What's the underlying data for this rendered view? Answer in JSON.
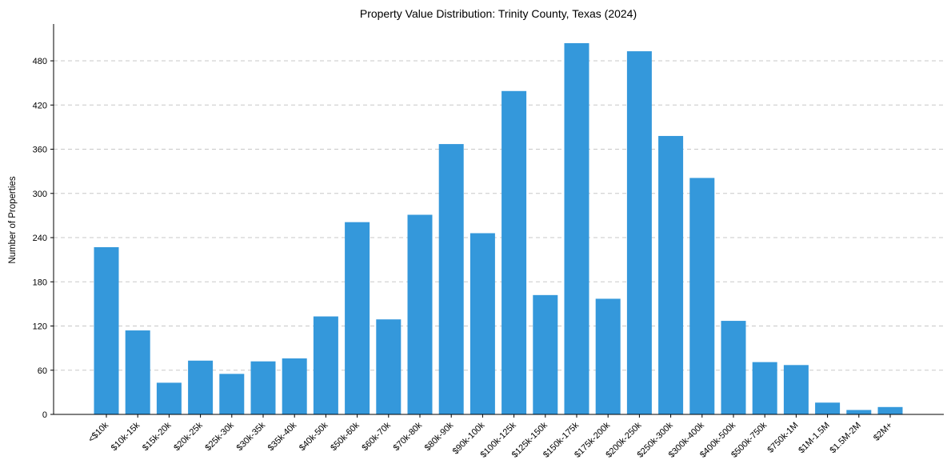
{
  "chart_data": {
    "type": "bar",
    "title": "Property Value Distribution: Trinity County, Texas (2024)",
    "xlabel": "",
    "ylabel": "Number of Properties",
    "ylim": [
      0,
      530
    ],
    "yticks": [
      0,
      60,
      120,
      180,
      240,
      300,
      360,
      420,
      480
    ],
    "grid": "y-axis dashed",
    "categories": [
      "<$10k",
      "$10k-15k",
      "$15k-20k",
      "$20k-25k",
      "$25k-30k",
      "$30k-35k",
      "$35k-40k",
      "$40k-50k",
      "$50k-60k",
      "$60k-70k",
      "$70k-80k",
      "$80k-90k",
      "$90k-100k",
      "$100k-125k",
      "$125k-150k",
      "$150k-175k",
      "$175k-200k",
      "$200k-250k",
      "$250k-300k",
      "$300k-400k",
      "$400k-500k",
      "$500k-750k",
      "$750k-1M",
      "$1M-1.5M",
      "$1.5M-2M",
      "$2M+"
    ],
    "values": [
      227,
      114,
      43,
      73,
      55,
      72,
      76,
      133,
      261,
      129,
      271,
      367,
      246,
      439,
      162,
      504,
      157,
      493,
      378,
      321,
      127,
      71,
      67,
      16,
      6,
      10
    ],
    "color": "#3498db"
  }
}
